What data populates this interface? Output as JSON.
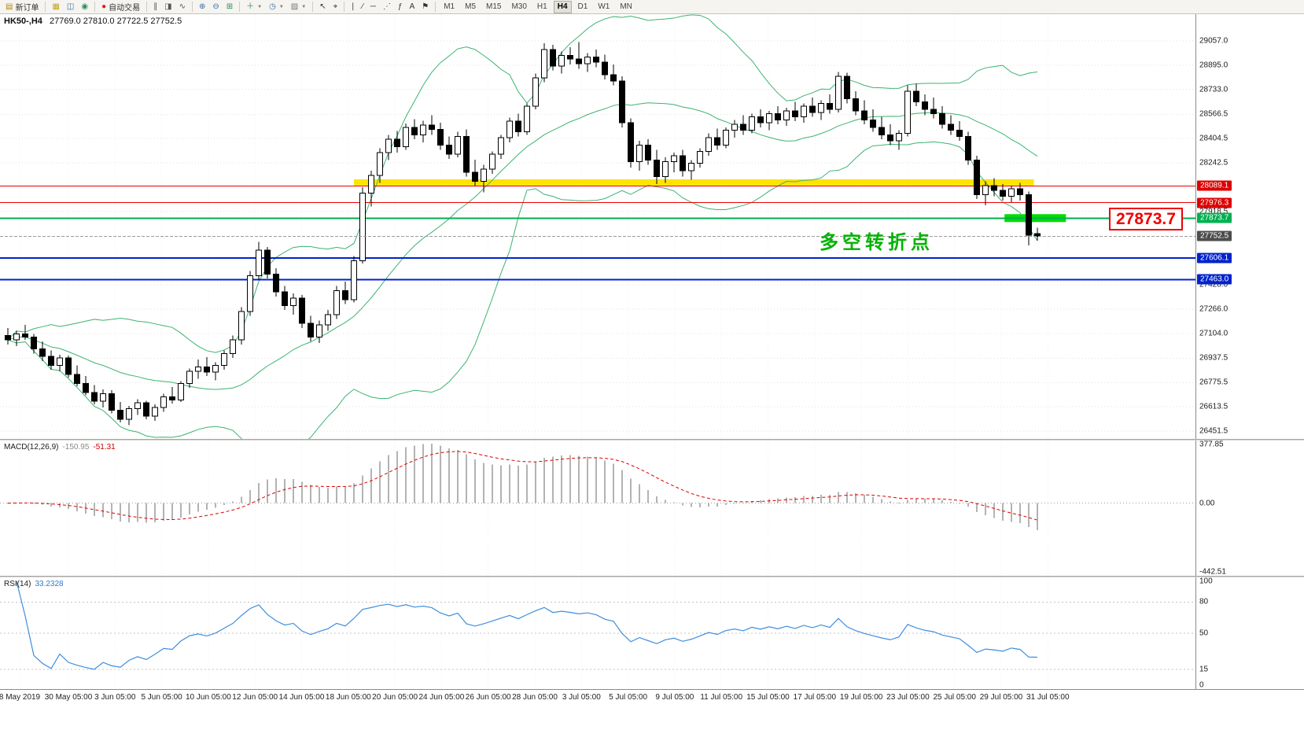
{
  "toolbar": {
    "items": [
      {
        "name": "new-order-button",
        "glyph": "▤",
        "color": "#b8860b",
        "label": "新订单"
      },
      {
        "sep": true
      },
      {
        "name": "market-watch-icon",
        "glyph": "▦",
        "color": "#c8a415"
      },
      {
        "name": "data-window-icon",
        "glyph": "◫",
        "color": "#3a6ea5"
      },
      {
        "name": "navigator-icon",
        "glyph": "◉",
        "color": "#2e8b57"
      },
      {
        "sep": true
      },
      {
        "name": "auto-trading-button",
        "glyph": "●",
        "color": "#d22222",
        "label": "自动交易"
      },
      {
        "sep": true
      },
      {
        "name": "bar-chart-button",
        "glyph": "∥",
        "color": "#555"
      },
      {
        "name": "candlestick-chart-button",
        "glyph": "◨",
        "color": "#555"
      },
      {
        "name": "line-chart-button",
        "glyph": "∿",
        "color": "#555"
      },
      {
        "sep": true
      },
      {
        "name": "zoom-in-button",
        "glyph": "⊕",
        "color": "#3a6ea5"
      },
      {
        "name": "zoom-out-button",
        "glyph": "⊖",
        "color": "#3a6ea5"
      },
      {
        "name": "tile-windows-button",
        "glyph": "⊞",
        "color": "#2e8b57"
      },
      {
        "sep": true
      },
      {
        "name": "indicators-button",
        "glyph": "＋",
        "color": "#2e8b57",
        "caret": true
      },
      {
        "name": "periods-button",
        "glyph": "◷",
        "color": "#3a6ea5",
        "caret": true
      },
      {
        "name": "templates-button",
        "glyph": "▨",
        "color": "#777",
        "caret": true
      },
      {
        "sep": true
      },
      {
        "name": "cursor-button",
        "glyph": "↖",
        "color": "#333"
      },
      {
        "name": "crosshair-button",
        "glyph": "⌖",
        "color": "#333"
      },
      {
        "sep": true
      },
      {
        "name": "vertical-line-button",
        "glyph": "∣",
        "color": "#333"
      },
      {
        "name": "trendline-button",
        "glyph": "∕",
        "color": "#333"
      },
      {
        "name": "horizontal-line-button",
        "glyph": "─",
        "color": "#333"
      },
      {
        "name": "channel-button",
        "glyph": "⋰",
        "color": "#333"
      },
      {
        "name": "fibonacci-button",
        "glyph": "ƒ",
        "color": "#333"
      },
      {
        "name": "text-button",
        "glyph": "A",
        "color": "#333"
      },
      {
        "name": "arrows-button",
        "glyph": "⚑",
        "color": "#333"
      },
      {
        "sep": true
      }
    ],
    "timeframes": [
      "M1",
      "M5",
      "M15",
      "M30",
      "H1",
      "H4",
      "D1",
      "W1",
      "MN"
    ],
    "active_timeframe": "H4"
  },
  "main_chart": {
    "symbol": "HK50-,H4",
    "ohlc": "27769.0 27810.0 27722.5 27752.5",
    "annotation": "多空转折点",
    "big_label": "27873.7",
    "price_axis": {
      "grid_labels": [
        "29057.0",
        "28895.0",
        "28733.0",
        "28566.5",
        "28404.5",
        "28242.5",
        "27918.5",
        "27428.0",
        "27266.0",
        "27104.0",
        "26937.5",
        "26775.5",
        "26613.5",
        "26451.5"
      ],
      "tags": [
        {
          "text": "28089.1",
          "bg": "#dd0000"
        },
        {
          "text": "27976.3",
          "bg": "#dd0000"
        },
        {
          "text": "27873.7",
          "bg": "#00b050"
        },
        {
          "text": "27752.5",
          "bg": "#4d4d4d"
        },
        {
          "text": "27606.1",
          "bg": "#0022cc"
        },
        {
          "text": "27463.0",
          "bg": "#0022cc"
        }
      ]
    },
    "lines": [
      {
        "price": 28089.1,
        "color": "#ee0000",
        "width": 1
      },
      {
        "price": 27976.3,
        "color": "#ee0000",
        "width": 1
      },
      {
        "price": 27873.7,
        "color": "#00b050",
        "width": 2
      },
      {
        "price": 27606.1,
        "color": "#0022cc",
        "width": 2
      },
      {
        "price": 27463.0,
        "color": "#0022cc",
        "width": 2
      }
    ],
    "current_price": {
      "value": 27752.5,
      "color": "#9a9a9a"
    },
    "bands": [
      {
        "name": "yellow-highlight-band",
        "price": 28112,
        "from_index": 40,
        "to_index": 118.6,
        "thickness": 8,
        "color": "#ffe400"
      },
      {
        "name": "green-highlight-band",
        "price": 27873.7,
        "from_index": 115.2,
        "to_index": 122.3,
        "thickness": 10,
        "color": "#00dd00"
      }
    ]
  },
  "macd": {
    "title": "MACD(12,26,9)",
    "value_main": "-150.95",
    "value_signal": "-51.31",
    "scale": [
      "377.85",
      "0.00",
      "-442.51"
    ]
  },
  "rsi": {
    "title": "RSI(14)",
    "value": "33.2328",
    "scale": [
      "100",
      "80",
      "50",
      "15",
      "0"
    ]
  },
  "time_axis": {
    "labels": [
      "8 May 2019",
      "30 May 05:00",
      "3 Jun 05:00",
      "5 Jun 05:00",
      "10 Jun 05:00",
      "12 Jun 05:00",
      "14 Jun 05:00",
      "18 Jun 05:00",
      "20 Jun 05:00",
      "24 Jun 05:00",
      "26 Jun 05:00",
      "28 Jun 05:00",
      "3 Jul 05:00",
      "5 Jul 05:00",
      "9 Jul 05:00",
      "11 Jul 05:00",
      "15 Jul 05:00",
      "17 Jul 05:00",
      "19 Jul 05:00",
      "23 Jul 05:00",
      "25 Jul 05:00",
      "29 Jul 05:00",
      "31 Jul 05:00"
    ]
  },
  "chart_data": {
    "type": "candlestick",
    "symbol": "HK50-",
    "timeframe": "H4",
    "y_axis": {
      "top_price": 29057.0,
      "bottom_price": 26451.5
    },
    "candles": [
      [
        27090,
        27140,
        27030,
        27060
      ],
      [
        27060,
        27120,
        27020,
        27100
      ],
      [
        27100,
        27160,
        27060,
        27080
      ],
      [
        27080,
        27100,
        26970,
        27000
      ],
      [
        27000,
        27050,
        26920,
        26950
      ],
      [
        26950,
        26990,
        26860,
        26890
      ],
      [
        26890,
        26960,
        26850,
        26940
      ],
      [
        26940,
        26955,
        26810,
        26830
      ],
      [
        26830,
        26890,
        26750,
        26770
      ],
      [
        26770,
        26820,
        26690,
        26710
      ],
      [
        26710,
        26760,
        26630,
        26650
      ],
      [
        26650,
        26730,
        26610,
        26700
      ],
      [
        26700,
        26725,
        26570,
        26590
      ],
      [
        26590,
        26645,
        26510,
        26530
      ],
      [
        26530,
        26620,
        26490,
        26600
      ],
      [
        26600,
        26665,
        26560,
        26640
      ],
      [
        26640,
        26655,
        26530,
        26550
      ],
      [
        26550,
        26630,
        26520,
        26610
      ],
      [
        26610,
        26700,
        26580,
        26680
      ],
      [
        26680,
        26745,
        26635,
        26660
      ],
      [
        26660,
        26785,
        26645,
        26770
      ],
      [
        26770,
        26870,
        26740,
        26850
      ],
      [
        26850,
        26930,
        26800,
        26880
      ],
      [
        26880,
        26945,
        26820,
        26845
      ],
      [
        26845,
        26910,
        26790,
        26890
      ],
      [
        26890,
        26990,
        26860,
        26970
      ],
      [
        26970,
        27090,
        26940,
        27060
      ],
      [
        27060,
        27280,
        27030,
        27250
      ],
      [
        27250,
        27520,
        27220,
        27490
      ],
      [
        27490,
        27715,
        27460,
        27660
      ],
      [
        27660,
        27680,
        27470,
        27500
      ],
      [
        27500,
        27540,
        27350,
        27380
      ],
      [
        27380,
        27420,
        27260,
        27290
      ],
      [
        27290,
        27370,
        27230,
        27340
      ],
      [
        27340,
        27360,
        27140,
        27170
      ],
      [
        27170,
        27220,
        27050,
        27080
      ],
      [
        27080,
        27190,
        27040,
        27160
      ],
      [
        27160,
        27260,
        27120,
        27230
      ],
      [
        27230,
        27420,
        27200,
        27390
      ],
      [
        27390,
        27450,
        27300,
        27330
      ],
      [
        27330,
        27620,
        27310,
        27590
      ],
      [
        27590,
        28080,
        27570,
        28040
      ],
      [
        28040,
        28190,
        27950,
        28160
      ],
      [
        28160,
        28340,
        28110,
        28310
      ],
      [
        28310,
        28430,
        28260,
        28400
      ],
      [
        28400,
        28455,
        28310,
        28350
      ],
      [
        28350,
        28505,
        28330,
        28480
      ],
      [
        28480,
        28535,
        28400,
        28430
      ],
      [
        28430,
        28525,
        28380,
        28495
      ],
      [
        28495,
        28560,
        28430,
        28465
      ],
      [
        28465,
        28510,
        28330,
        28360
      ],
      [
        28360,
        28420,
        28270,
        28300
      ],
      [
        28300,
        28450,
        28280,
        28420
      ],
      [
        28420,
        28465,
        28150,
        28180
      ],
      [
        28180,
        28265,
        28090,
        28120
      ],
      [
        28120,
        28230,
        28045,
        28200
      ],
      [
        28200,
        28320,
        28170,
        28300
      ],
      [
        28300,
        28430,
        28270,
        28410
      ],
      [
        28410,
        28545,
        28380,
        28520
      ],
      [
        28520,
        28570,
        28420,
        28450
      ],
      [
        28450,
        28640,
        28430,
        28620
      ],
      [
        28620,
        28840,
        28600,
        28810
      ],
      [
        28810,
        29040,
        28780,
        29000
      ],
      [
        29000,
        29030,
        28860,
        28890
      ],
      [
        28890,
        28985,
        28840,
        28960
      ],
      [
        28960,
        29015,
        28900,
        28935
      ],
      [
        28935,
        29050,
        28870,
        28905
      ],
      [
        28905,
        28975,
        28850,
        28950
      ],
      [
        28950,
        29000,
        28880,
        28915
      ],
      [
        28915,
        28965,
        28800,
        28830
      ],
      [
        28830,
        28900,
        28760,
        28790
      ],
      [
        28790,
        28820,
        28480,
        28510
      ],
      [
        28510,
        28540,
        28210,
        28250
      ],
      [
        28250,
        28390,
        28190,
        28360
      ],
      [
        28360,
        28400,
        28230,
        28260
      ],
      [
        28260,
        28330,
        28100,
        28150
      ],
      [
        28150,
        28280,
        28110,
        28250
      ],
      [
        28250,
        28310,
        28180,
        28290
      ],
      [
        28290,
        28330,
        28150,
        28190
      ],
      [
        28190,
        28260,
        28130,
        28240
      ],
      [
        28240,
        28340,
        28210,
        28320
      ],
      [
        28320,
        28440,
        28290,
        28410
      ],
      [
        28410,
        28470,
        28330,
        28360
      ],
      [
        28360,
        28480,
        28340,
        28460
      ],
      [
        28460,
        28530,
        28410,
        28500
      ],
      [
        28500,
        28560,
        28430,
        28460
      ],
      [
        28460,
        28570,
        28440,
        28550
      ],
      [
        28550,
        28600,
        28480,
        28510
      ],
      [
        28510,
        28590,
        28460,
        28570
      ],
      [
        28570,
        28620,
        28500,
        28530
      ],
      [
        28530,
        28610,
        28490,
        28590
      ],
      [
        28590,
        28650,
        28520,
        28550
      ],
      [
        28550,
        28640,
        28510,
        28620
      ],
      [
        28620,
        28680,
        28550,
        28580
      ],
      [
        28580,
        28660,
        28530,
        28640
      ],
      [
        28640,
        28700,
        28570,
        28600
      ],
      [
        28600,
        28850,
        28580,
        28820
      ],
      [
        28820,
        28845,
        28640,
        28670
      ],
      [
        28670,
        28720,
        28560,
        28590
      ],
      [
        28590,
        28660,
        28500,
        28530
      ],
      [
        28530,
        28600,
        28450,
        28480
      ],
      [
        28480,
        28550,
        28400,
        28430
      ],
      [
        28430,
        28500,
        28360,
        28390
      ],
      [
        28390,
        28460,
        28330,
        28440
      ],
      [
        28440,
        28760,
        28420,
        28720
      ],
      [
        28720,
        28770,
        28620,
        28650
      ],
      [
        28650,
        28700,
        28560,
        28600
      ],
      [
        28600,
        28680,
        28540,
        28570
      ],
      [
        28570,
        28620,
        28470,
        28500
      ],
      [
        28500,
        28560,
        28430,
        28460
      ],
      [
        28460,
        28520,
        28390,
        28420
      ],
      [
        28420,
        28450,
        28230,
        28260
      ],
      [
        28260,
        28290,
        28000,
        28030
      ],
      [
        28030,
        28120,
        27960,
        28090
      ],
      [
        28090,
        28140,
        28020,
        28060
      ],
      [
        28060,
        28100,
        27990,
        28020
      ],
      [
        28020,
        28090,
        27980,
        28070
      ],
      [
        28070,
        28110,
        27990,
        28030
      ],
      [
        28030,
        28050,
        27690,
        27760
      ],
      [
        27769,
        27810,
        27722.5,
        27752.5
      ]
    ],
    "indicators": {
      "bollinger": {
        "period": 20,
        "deviation": 2,
        "color": "#3cb371"
      },
      "macd": {
        "fast": 12,
        "slow": 26,
        "signal": 9,
        "histogram_color": "#b3b3b3",
        "signal_color": "#dd0000",
        "range": [
          377.85,
          -442.51
        ],
        "current_main": -150.95,
        "current_signal": -51.31
      },
      "rsi": {
        "period": 14,
        "color": "#3e8ede",
        "levels": [
          80,
          50,
          15
        ],
        "current": 33.2328
      }
    }
  }
}
